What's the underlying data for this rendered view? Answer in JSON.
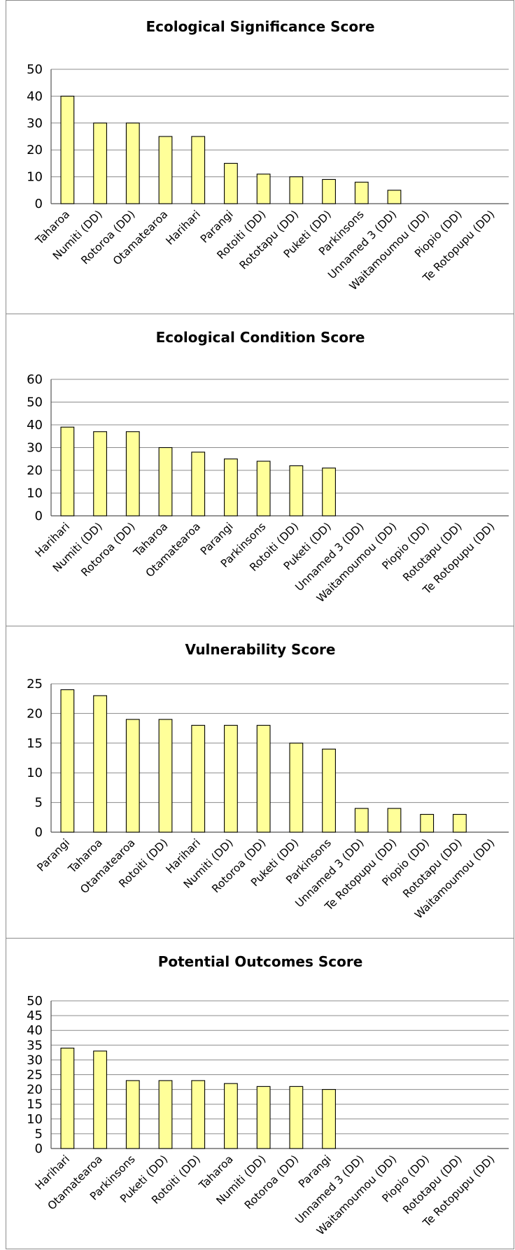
{
  "colors": {
    "bar_fill": "#ffff99",
    "bar_stroke": "#000000",
    "grid": "#8c8c8c",
    "border": "#8c8c8c"
  },
  "chart_data": [
    {
      "type": "bar",
      "title": "Ecological Significance Score",
      "categories": [
        "Taharoa",
        "Numiti (DD)",
        "Rotoroa (DD)",
        "Otamatearoa",
        "Harihari",
        "Parangi",
        "Rotoiti (DD)",
        "Rototapu (DD)",
        "Puketi (DD)",
        "Parkinsons",
        "Unnamed 3 (DD)",
        "Waitamoumou (DD)",
        "Piopio (DD)",
        "Te Rotopupu (DD)"
      ],
      "values": [
        40,
        30,
        30,
        25,
        25,
        15,
        11,
        10,
        9,
        8,
        5,
        0,
        0,
        0
      ],
      "ylim": [
        0,
        50
      ],
      "yticks": [
        0,
        10,
        20,
        30,
        40,
        50
      ],
      "grid": true,
      "legend": "none"
    },
    {
      "type": "bar",
      "title": "Ecological Condition Score",
      "categories": [
        "Harihari",
        "Numiti (DD)",
        "Rotoroa (DD)",
        "Taharoa",
        "Otamatearoa",
        "Parangi",
        "Parkinsons",
        "Rotoiti (DD)",
        "Puketi (DD)",
        "Unnamed 3 (DD)",
        "Waitamoumou (DD)",
        "Piopio (DD)",
        "Rototapu (DD)",
        "Te Rotopupu (DD)"
      ],
      "values": [
        39,
        37,
        37,
        30,
        28,
        25,
        24,
        22,
        21,
        0,
        0,
        0,
        0,
        0
      ],
      "ylim": [
        0,
        60
      ],
      "yticks": [
        0,
        10,
        20,
        30,
        40,
        50,
        60
      ],
      "grid": true,
      "legend": "none"
    },
    {
      "type": "bar",
      "title": "Vulnerability Score",
      "categories": [
        "Parangi",
        "Taharoa",
        "Otamatearoa",
        "Rotoiti (DD)",
        "Harihari",
        "Numiti (DD)",
        "Rotoroa (DD)",
        "Puketi (DD)",
        "Parkinsons",
        "Unnamed 3 (DD)",
        "Te Rotopupu (DD)",
        "Piopio (DD)",
        "Rototapu (DD)",
        "Waitamoumou (DD)"
      ],
      "values": [
        24,
        23,
        19,
        19,
        18,
        18,
        18,
        15,
        14,
        4,
        4,
        3,
        3,
        0
      ],
      "ylim": [
        0,
        25
      ],
      "yticks": [
        0,
        5,
        10,
        15,
        20,
        25
      ],
      "grid": true,
      "legend": "none"
    },
    {
      "type": "bar",
      "title": "Potential Outcomes Score",
      "categories": [
        "Harihari",
        "Otamatearoa",
        "Parkinsons",
        "Puketi (DD)",
        "Rotoiti (DD)",
        "Taharoa",
        "Numiti (DD)",
        "Rotoroa (DD)",
        "Parangi",
        "Unnamed 3 (DD)",
        "Waitamoumou (DD)",
        "Piopio (DD)",
        "Rototapu (DD)",
        "Te Rotopupu (DD)"
      ],
      "values": [
        34,
        33,
        23,
        23,
        23,
        22,
        21,
        21,
        20,
        0,
        0,
        0,
        0,
        0
      ],
      "ylim": [
        0,
        50
      ],
      "yticks": [
        0,
        5,
        10,
        15,
        20,
        25,
        30,
        35,
        40,
        45,
        50
      ],
      "grid": true,
      "legend": "none"
    }
  ]
}
